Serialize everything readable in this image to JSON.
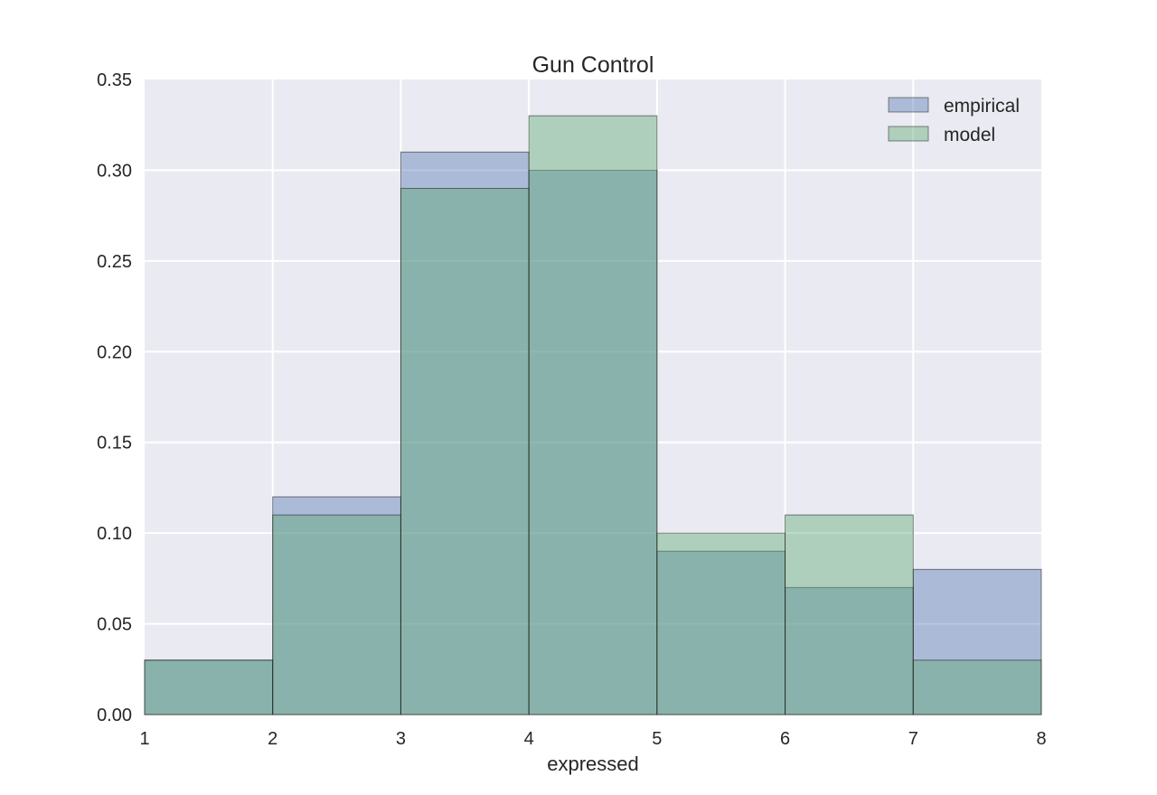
{
  "chart_data": {
    "type": "bar",
    "title": "Gun Control",
    "xlabel": "expressed",
    "ylabel": "",
    "bin_edges": [
      1,
      2,
      3,
      4,
      5,
      6,
      7,
      8
    ],
    "xlim": [
      1,
      8
    ],
    "ylim": [
      0,
      0.35
    ],
    "xticks": [
      "1",
      "2",
      "3",
      "4",
      "5",
      "6",
      "7",
      "8"
    ],
    "yticks": [
      "0.00",
      "0.05",
      "0.10",
      "0.15",
      "0.20",
      "0.25",
      "0.30",
      "0.35"
    ],
    "series": [
      {
        "name": "empirical",
        "color": "#4c72b0",
        "values": [
          0.03,
          0.12,
          0.31,
          0.3,
          0.09,
          0.07,
          0.08
        ]
      },
      {
        "name": "model",
        "color": "#55a868",
        "values": [
          0.03,
          0.11,
          0.29,
          0.33,
          0.1,
          0.11,
          0.03
        ]
      }
    ],
    "grid": true,
    "background": "#eaeaf2",
    "legend_position": "top-right"
  }
}
